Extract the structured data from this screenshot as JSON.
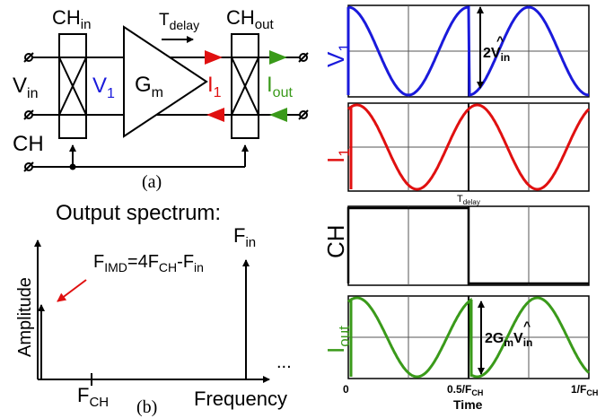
{
  "colors": {
    "v1": "#1a1adb",
    "i1": "#e01010",
    "iout": "#3a9a1a",
    "ink": "#000000",
    "plot_gray": "#555555"
  },
  "circuit": {
    "ch_in": {
      "main": "CH",
      "sub": "in"
    },
    "ch_out": {
      "main": "CH",
      "sub": "out"
    },
    "t_delay": {
      "main": "T",
      "sub": "delay"
    },
    "v_in": {
      "main": "V",
      "sub": "in"
    },
    "v1": {
      "main": "V",
      "sub": "1"
    },
    "gm": {
      "main": "G",
      "sub": "m"
    },
    "i1": {
      "main": "I",
      "sub": "1"
    },
    "i_out": {
      "main": "I",
      "sub": "out"
    },
    "ch": "CH",
    "caption": "(a)"
  },
  "spectrum": {
    "title": "Output spectrum:",
    "y_label": "Amplitude",
    "x_label": "Frequency",
    "f_in": {
      "main": "F",
      "sub": "in"
    },
    "f_ch": {
      "main": "F",
      "sub": "CH"
    },
    "f_imd": {
      "p1": "F",
      "s1": "IMD",
      "p2": "=4F",
      "s2": "CH",
      "p3": "-F",
      "s3": "in"
    },
    "ellipsis": "...",
    "caption": "(b)"
  },
  "waveforms": {
    "panels": [
      {
        "label_main": "V",
        "label_sub": "1",
        "color_key": "v1",
        "kind": "v1"
      },
      {
        "label_main": "I",
        "label_sub": "1",
        "color_key": "i1",
        "kind": "i1"
      },
      {
        "label_main": "CH",
        "label_sub": "",
        "color_key": "ink",
        "kind": "ch"
      },
      {
        "label_main": "I",
        "label_sub": "out",
        "color_key": "iout",
        "kind": "iout"
      }
    ],
    "v1_amp": {
      "main": "2V",
      "sub": "in"
    },
    "iout_amp": {
      "p1": "2G",
      "s1": "m",
      "p2": "V",
      "s2": "in"
    },
    "t_delay": {
      "main": "T",
      "sub": "delay"
    },
    "x_ticks": [
      {
        "label": "0",
        "sub": ""
      },
      {
        "label": "0.5/F",
        "sub": "CH"
      },
      {
        "label": "1/F",
        "sub": "CH"
      }
    ],
    "x_label": "Time"
  }
}
